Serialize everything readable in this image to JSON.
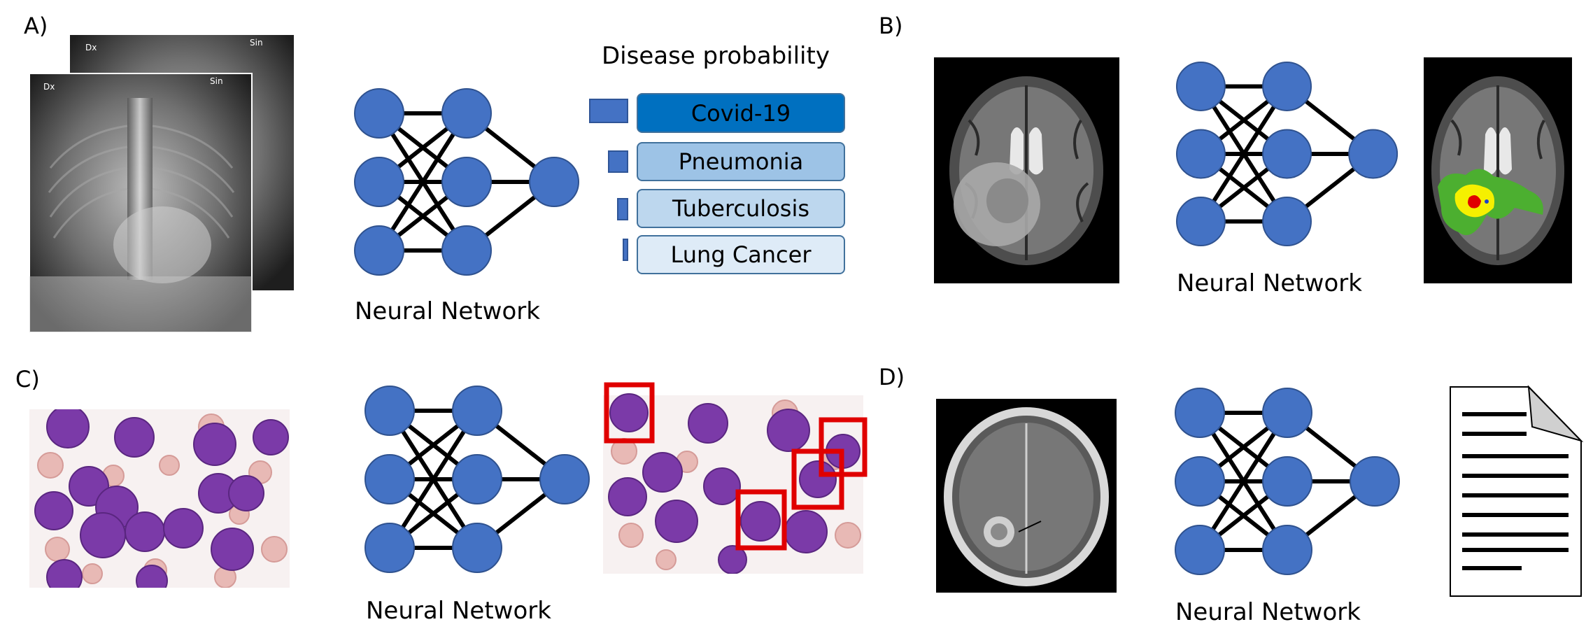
{
  "panels": {
    "a": {
      "label": "A)",
      "xray_markers": [
        "Dx",
        "Sin"
      ],
      "network_label": "Neural Network",
      "output_title": "Disease probability",
      "classes": [
        {
          "label": "Covid-19",
          "probability": 1.0,
          "highlight": true
        },
        {
          "label": "Pneumonia",
          "probability": 0.5,
          "highlight": false
        },
        {
          "label": "Tuberculosis",
          "probability": 0.3,
          "highlight": false
        },
        {
          "label": "Lung Cancer",
          "probability": 0.15,
          "highlight": false
        }
      ]
    },
    "b": {
      "label": "B)",
      "network_label": "Neural Network"
    },
    "c": {
      "label": "C)",
      "network_label": "Neural Network"
    },
    "d": {
      "label": "D)",
      "network_label": "Neural Network"
    }
  },
  "colors": {
    "node_fill": "#4472c4",
    "node_stroke": "#2f528f",
    "highlight_box": "#0070c0",
    "light_box": "#9dc3e6",
    "lighter_box": "#bdd7ee",
    "lightest_box": "#deebf7",
    "detection_box": "#e00000",
    "seg_outer": "#4caf30",
    "seg_mid": "#f5f000",
    "seg_core": "#e00000"
  },
  "icons": [
    "chest-xray-image",
    "neural-network-icon",
    "brain-mri-image",
    "segmentation-mask-image",
    "blood-cell-microscopy-image",
    "detection-boxes-image",
    "document-icon"
  ]
}
